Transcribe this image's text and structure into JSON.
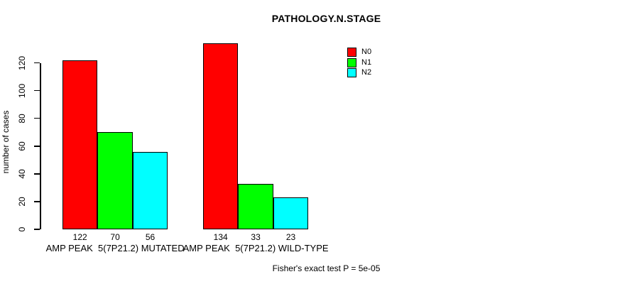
{
  "chart_data": {
    "type": "bar",
    "title": "PATHOLOGY.N.STAGE",
    "xlabel": "",
    "ylabel": "number of cases",
    "ylim": [
      0,
      120
    ],
    "yticks": [
      0,
      20,
      40,
      60,
      80,
      100,
      120
    ],
    "grid": false,
    "legend_position": "top-right",
    "bar_value_labels_shown": true,
    "categories": [
      "AMP PEAK  5(7P21.2) MUTATED",
      "AMP PEAK  5(7P21.2) WILD-TYPE"
    ],
    "series": [
      {
        "name": "N0",
        "color": "#ff0000",
        "values": [
          122,
          134
        ]
      },
      {
        "name": "N1",
        "color": "#00ff00",
        "values": [
          70,
          33
        ]
      },
      {
        "name": "N2",
        "color": "#00ffff",
        "values": [
          56,
          23
        ]
      }
    ],
    "annotation": "Fisher's exact test P = 5e-05",
    "axis_color": "#000000",
    "background_color": "#ffffff"
  }
}
